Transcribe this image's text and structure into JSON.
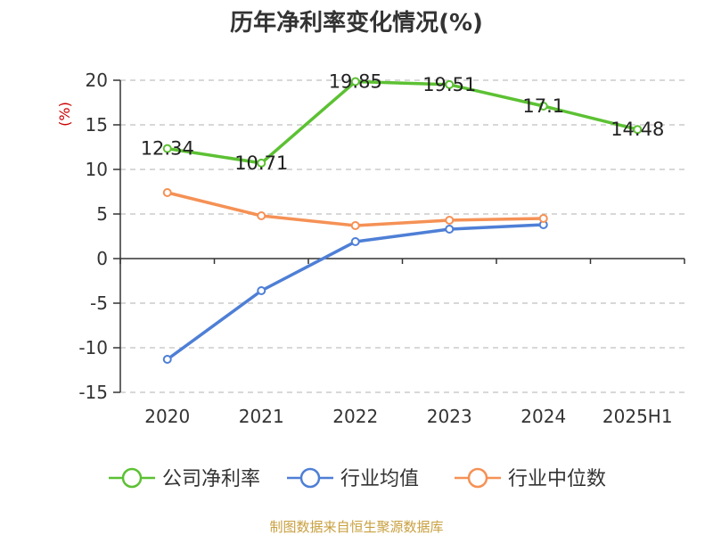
{
  "chart_data": {
    "type": "line",
    "title": "历年净利率变化情况(%)",
    "ylabel": "(%)",
    "xlabel": "",
    "categories": [
      "2020",
      "2021",
      "2022",
      "2023",
      "2024",
      "2025H1"
    ],
    "ylim": [
      -15,
      20
    ],
    "yticks": [
      20,
      15,
      10,
      5,
      0,
      -5,
      -10,
      -15
    ],
    "grid": true,
    "legend_position": "bottom",
    "series": [
      {
        "name": "公司净利率",
        "color": "#5cc133",
        "values": [
          12.34,
          10.71,
          19.85,
          19.51,
          17.1,
          14.48
        ],
        "show_labels": true
      },
      {
        "name": "行业均值",
        "color": "#4e7fd6",
        "values": [
          -11.3,
          -3.6,
          1.9,
          3.3,
          3.8,
          null
        ],
        "show_labels": false
      },
      {
        "name": "行业中位数",
        "color": "#f59155",
        "values": [
          7.4,
          4.8,
          3.7,
          4.3,
          4.5,
          null
        ],
        "show_labels": false
      }
    ]
  },
  "source_text": "制图数据来自恒生聚源数据库",
  "colors": {
    "axis": "#333333",
    "grid": "#cccccc",
    "ylabel": "#cc0000",
    "source": "#c8a040"
  }
}
